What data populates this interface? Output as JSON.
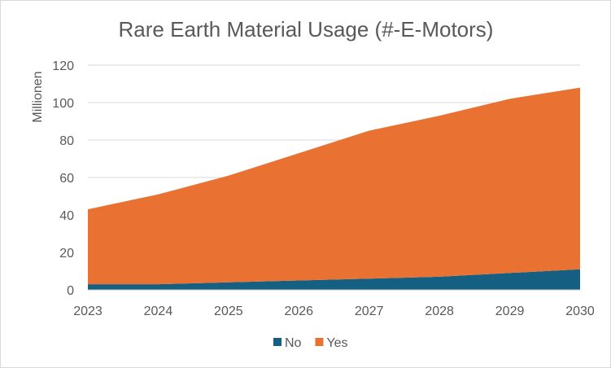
{
  "chart_data": {
    "type": "area",
    "stacked": true,
    "title": "Rare Earth Material Usage (#-E-Motors)",
    "xlabel": "",
    "ylabel": "Millionen",
    "x": [
      "2023",
      "2024",
      "2025",
      "2026",
      "2027",
      "2028",
      "2029",
      "2030"
    ],
    "ylim": [
      0,
      120
    ],
    "yticks": [
      0,
      20,
      40,
      60,
      80,
      100,
      120
    ],
    "grid": true,
    "legend": "bottom",
    "series": [
      {
        "name": "No",
        "color": "#156082",
        "values": [
          3,
          3,
          4,
          5,
          6,
          7,
          9,
          11
        ]
      },
      {
        "name": "Yes",
        "color": "#E97132",
        "values": [
          40,
          48,
          57,
          68,
          79,
          86,
          93,
          97
        ]
      }
    ]
  }
}
